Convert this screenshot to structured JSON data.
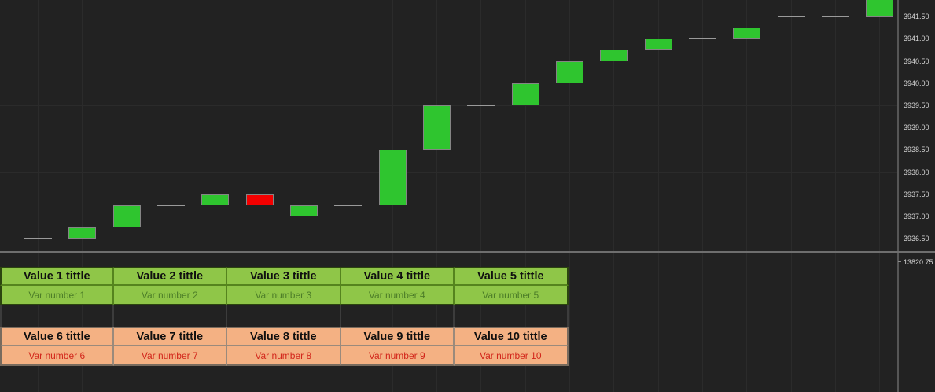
{
  "chart": {
    "background": "#222222",
    "grid_color": "#2b2b2b",
    "up_color": "#2fc52f",
    "down_color": "#f40000",
    "flat_dash_color": "#9a9a9a",
    "candle_border_color": "#858585",
    "axis_text_color": "#d6d6d6",
    "pane_separator_color": "#6e6e6e"
  },
  "chart_data": {
    "type": "candlestick",
    "title": "",
    "price_axis_labels": [
      "3941.50",
      "3941.00",
      "3940.50",
      "3940.00",
      "3939.50",
      "3939.00",
      "3938.50",
      "3938.00",
      "3937.50",
      "3937.00",
      "3936.50"
    ],
    "hgrid_prices": [
      3941.0,
      3939.5,
      3938.0,
      3936.5
    ],
    "ylim": [
      3936.2,
      3941.875
    ],
    "indicator_value": "13820.75",
    "candles": [
      {
        "open": 3936.5,
        "close": 3936.5
      },
      {
        "open": 3936.5,
        "close": 3936.75
      },
      {
        "open": 3936.75,
        "close": 3937.25
      },
      {
        "open": 3937.25,
        "close": 3937.25
      },
      {
        "open": 3937.25,
        "close": 3937.5
      },
      {
        "open": 3937.5,
        "close": 3937.25
      },
      {
        "open": 3937.0,
        "close": 3937.25
      },
      {
        "open": 3937.25,
        "close": 3937.25,
        "low": 3937.0
      },
      {
        "open": 3937.25,
        "close": 3938.5
      },
      {
        "open": 3938.5,
        "close": 3939.5
      },
      {
        "open": 3939.5,
        "close": 3939.5
      },
      {
        "open": 3939.5,
        "close": 3940.0
      },
      {
        "open": 3940.0,
        "close": 3940.5
      },
      {
        "open": 3940.5,
        "close": 3940.75
      },
      {
        "open": 3940.75,
        "close": 3941.0
      },
      {
        "open": 3941.0,
        "close": 3941.0
      },
      {
        "open": 3941.0,
        "close": 3941.25
      },
      {
        "open": 3941.5,
        "close": 3941.5
      },
      {
        "open": 3941.5,
        "close": 3941.5
      },
      {
        "open": 3941.5,
        "close": 3942.0
      }
    ]
  },
  "table": {
    "green": {
      "bg": "#8fc648",
      "title_color": "#101010",
      "value_color": "#4c7d28",
      "border_inner": "#55841e",
      "border_outer": "#2c450f",
      "titles": [
        "Value 1 tittle",
        "Value 2 tittle",
        "Value 3 tittle",
        "Value 4 tittle",
        "Value 5 tittle"
      ],
      "values": [
        "Var number 1",
        "Var number 2",
        "Var number 3",
        "Var number 4",
        "Var number 5"
      ]
    },
    "orange": {
      "bg": "#f4b183",
      "title_color": "#101010",
      "value_color": "#d2261b",
      "border_inner": "#9a8a7c",
      "border_outer": "#786b5e",
      "titles": [
        "Value 6 tittle",
        "Value 7 tittle",
        "Value 8 tittle",
        "Value 9 tittle",
        "Value 10 tittle"
      ],
      "values": [
        "Var number 6",
        "Var number 7",
        "Var number 8",
        "Var number 9",
        "Var number 10"
      ]
    },
    "gap_border": "#3c3c3c"
  }
}
